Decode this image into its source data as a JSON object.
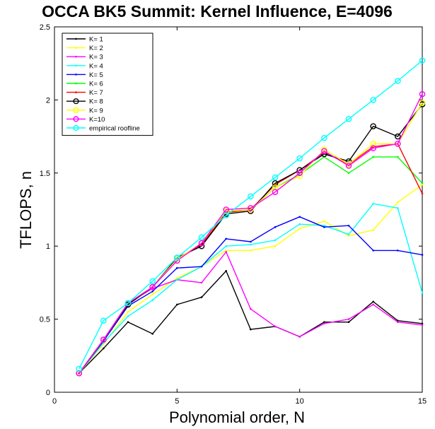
{
  "chart_data": {
    "type": "line",
    "title": "OCCA BK5 Summit: Kernel Influence, E=4096",
    "xlabel": "Polynomial order, N",
    "ylabel": "TFLOPS, n",
    "xlim": [
      0,
      15
    ],
    "ylim": [
      0,
      2.5
    ],
    "xticks": [
      0,
      5,
      10,
      15
    ],
    "yticks": [
      0,
      0.5,
      1,
      1.5,
      2,
      2.5
    ],
    "xtick_labels": [
      "0",
      "5",
      "10",
      "15"
    ],
    "ytick_labels": [
      "0",
      "0.5",
      "1",
      "1.5",
      "2",
      "2.5"
    ],
    "grid": false,
    "legend_position": "top-left",
    "x": [
      1,
      2,
      3,
      4,
      5,
      6,
      7,
      8,
      9,
      10,
      11,
      12,
      13,
      14,
      15
    ],
    "series": [
      {
        "name": "K= 1",
        "color": "#000000",
        "marker": "dot",
        "values": [
          0.13,
          0.3,
          0.48,
          0.4,
          0.6,
          0.65,
          0.83,
          0.43,
          0.45,
          0.38,
          0.48,
          0.48,
          0.62,
          0.49,
          0.47
        ]
      },
      {
        "name": "K= 2",
        "color": "#ffff00",
        "marker": "dot",
        "values": [
          0.13,
          0.33,
          0.55,
          0.67,
          0.78,
          0.86,
          0.97,
          0.97,
          1.0,
          1.12,
          1.17,
          1.07,
          1.11,
          1.3,
          1.42
        ]
      },
      {
        "name": "K= 3",
        "color": "#ff00ff",
        "marker": "dot",
        "values": [
          0.13,
          0.36,
          0.61,
          0.71,
          0.77,
          0.75,
          0.96,
          0.57,
          0.45,
          0.38,
          0.47,
          0.5,
          0.6,
          0.48,
          0.46
        ]
      },
      {
        "name": "K= 4",
        "color": "#00ffff",
        "marker": "dot",
        "values": [
          0.13,
          0.34,
          0.52,
          0.63,
          0.77,
          0.86,
          1.0,
          1.01,
          1.04,
          1.15,
          1.14,
          1.08,
          1.29,
          1.26,
          0.68
        ]
      },
      {
        "name": "K= 5",
        "color": "#0000ff",
        "marker": "dot",
        "values": [
          0.13,
          0.35,
          0.59,
          0.69,
          0.85,
          0.86,
          1.05,
          1.03,
          1.13,
          1.2,
          1.13,
          1.14,
          0.97,
          0.97,
          0.94
        ]
      },
      {
        "name": "K= 6",
        "color": "#00ff00",
        "marker": "dot",
        "values": [
          0.13,
          0.36,
          0.6,
          0.72,
          0.91,
          1.01,
          1.23,
          1.25,
          1.4,
          1.49,
          1.61,
          1.5,
          1.61,
          1.61,
          1.43
        ]
      },
      {
        "name": "K= 7",
        "color": "#ff0000",
        "marker": "dot",
        "values": [
          0.13,
          0.36,
          0.6,
          0.72,
          0.91,
          1.01,
          1.23,
          1.25,
          1.42,
          1.52,
          1.64,
          1.56,
          1.68,
          1.7,
          1.36
        ]
      },
      {
        "name": "K= 8",
        "color": "#000000",
        "marker": "circle",
        "values": [
          0.13,
          0.36,
          0.6,
          0.72,
          0.92,
          1.0,
          1.22,
          1.24,
          1.43,
          1.52,
          1.63,
          1.58,
          1.82,
          1.75,
          1.97
        ]
      },
      {
        "name": "K= 9",
        "color": "#ffff00",
        "marker": "circle",
        "values": [
          0.13,
          0.36,
          0.61,
          0.72,
          0.91,
          1.02,
          1.24,
          1.25,
          1.4,
          1.48,
          1.66,
          1.56,
          1.7,
          1.7,
          1.98
        ]
      },
      {
        "name": "K=10",
        "color": "#ff00ff",
        "marker": "circle",
        "values": [
          0.13,
          0.36,
          0.61,
          0.72,
          0.9,
          1.02,
          1.25,
          1.26,
          1.37,
          1.5,
          1.65,
          1.55,
          1.67,
          1.7,
          2.04
        ]
      },
      {
        "name": "empirical roofline",
        "color": "#00ffff",
        "marker": "circle",
        "values": [
          0.16,
          0.49,
          0.61,
          0.76,
          0.92,
          1.06,
          1.21,
          1.34,
          1.47,
          1.6,
          1.74,
          1.87,
          2.0,
          2.13,
          2.27
        ]
      }
    ]
  }
}
